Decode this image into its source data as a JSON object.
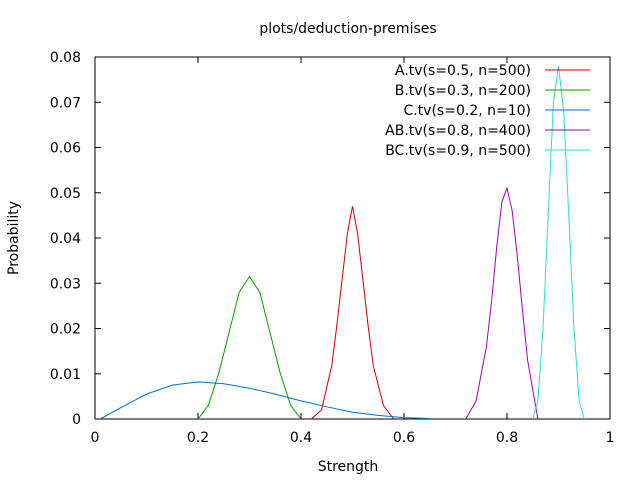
{
  "chart_data": {
    "type": "line",
    "title": "plots/deduction-premises",
    "xlabel": "Strength",
    "ylabel": "Probability",
    "xlim": [
      0,
      1
    ],
    "ylim": [
      0,
      0.08
    ],
    "xticks": [
      0,
      0.2,
      0.4,
      0.6,
      0.8,
      1
    ],
    "xtick_labels": [
      "0",
      "0.2",
      "0.4",
      "0.6",
      "0.8",
      "1"
    ],
    "yticks": [
      0,
      0.01,
      0.02,
      0.03,
      0.04,
      0.05,
      0.06,
      0.07,
      0.08
    ],
    "ytick_labels": [
      "0",
      "0.01",
      "0.02",
      "0.03",
      "0.04",
      "0.05",
      "0.06",
      "0.07",
      "0.08"
    ],
    "grid": false,
    "legend_position": "top-right",
    "series": [
      {
        "name": "A.tv(s=0.5, n=500)",
        "color": "#c80000",
        "x": [
          0.42,
          0.44,
          0.46,
          0.47,
          0.48,
          0.49,
          0.5,
          0.51,
          0.52,
          0.53,
          0.54,
          0.56,
          0.58
        ],
        "y": [
          0.0,
          0.002,
          0.012,
          0.021,
          0.031,
          0.041,
          0.047,
          0.041,
          0.031,
          0.021,
          0.012,
          0.003,
          0.0
        ]
      },
      {
        "name": "B.tv(s=0.3, n=200)",
        "color": "#00a000",
        "x": [
          0.2,
          0.22,
          0.24,
          0.26,
          0.28,
          0.3,
          0.32,
          0.34,
          0.36,
          0.38,
          0.4
        ],
        "y": [
          0.0,
          0.003,
          0.01,
          0.019,
          0.028,
          0.0315,
          0.028,
          0.019,
          0.01,
          0.003,
          0.0
        ]
      },
      {
        "name": "C.tv(s=0.2, n=10)",
        "color": "#0070d0",
        "x": [
          0.01,
          0.05,
          0.1,
          0.15,
          0.2,
          0.25,
          0.3,
          0.35,
          0.4,
          0.45,
          0.5,
          0.55,
          0.6,
          0.65
        ],
        "y": [
          0.0,
          0.0025,
          0.0055,
          0.0075,
          0.0082,
          0.0078,
          0.0068,
          0.0055,
          0.004,
          0.0027,
          0.0015,
          0.0008,
          0.0003,
          0.0001
        ]
      },
      {
        "name": "AB.tv(s=0.8, n=400)",
        "color": "#a000b0",
        "x": [
          0.72,
          0.74,
          0.76,
          0.77,
          0.78,
          0.79,
          0.8,
          0.81,
          0.82,
          0.83,
          0.84,
          0.86
        ],
        "y": [
          0.0,
          0.004,
          0.016,
          0.026,
          0.038,
          0.048,
          0.051,
          0.046,
          0.036,
          0.024,
          0.013,
          0.0
        ]
      },
      {
        "name": "BC.tv(s=0.9, n=500)",
        "color": "#30d8d8",
        "x": [
          0.85,
          0.86,
          0.87,
          0.88,
          0.89,
          0.9,
          0.91,
          0.92,
          0.93,
          0.94,
          0.95
        ],
        "y": [
          0.0,
          0.004,
          0.02,
          0.045,
          0.07,
          0.078,
          0.068,
          0.045,
          0.02,
          0.004,
          0.0
        ]
      }
    ]
  }
}
